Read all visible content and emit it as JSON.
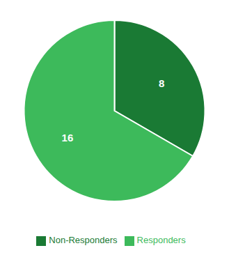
{
  "chart_data": {
    "type": "pie",
    "categories": [
      "Non-Responders",
      "Responders"
    ],
    "values": [
      8,
      16
    ],
    "colors": [
      "#1a7a34",
      "#3dba5b"
    ],
    "data_labels": true,
    "legend": "bottom"
  }
}
